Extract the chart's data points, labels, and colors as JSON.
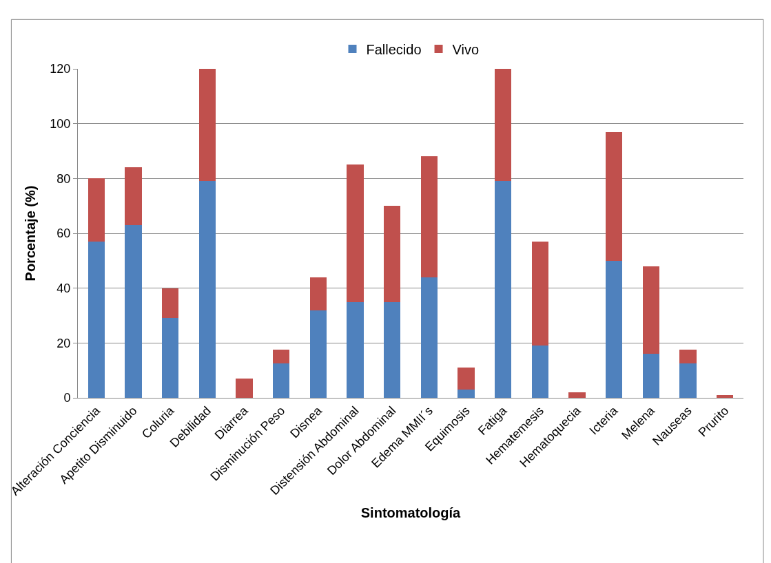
{
  "chart_data": {
    "type": "bar",
    "stacked": true,
    "xlabel": "Sintomatología",
    "ylabel": "Porcentaje (%)",
    "categories": [
      "Alteración Conciencia",
      "Apetito Disminuido",
      "Coluria",
      "Debilidad",
      "Diarrea",
      "Disminución Peso",
      "Disnea",
      "Distensión Abdominal",
      "Dolor Abdominal",
      "Edema MMII´s",
      "Equimosis",
      "Fatiga",
      "Hematemesis",
      "Hematoquecia",
      "Icteria",
      "Melena",
      "Nauseas",
      "Prurito"
    ],
    "series": [
      {
        "name": "Fallecido",
        "color": "#4f81bd",
        "values": [
          57,
          63,
          29,
          79,
          0,
          12.5,
          32,
          35,
          35,
          44,
          3,
          79,
          19,
          0,
          50,
          16,
          12.5,
          0
        ]
      },
      {
        "name": "Vivo",
        "color": "#c0504d",
        "values": [
          23,
          21,
          11,
          41,
          7,
          5,
          12,
          50,
          35,
          44,
          8,
          41,
          38,
          2,
          47,
          32,
          5,
          1
        ]
      }
    ],
    "ylim": [
      0,
      120
    ],
    "yticks": [
      0,
      20,
      40,
      60,
      80,
      100,
      120
    ],
    "grid": "y",
    "legend": "top"
  }
}
